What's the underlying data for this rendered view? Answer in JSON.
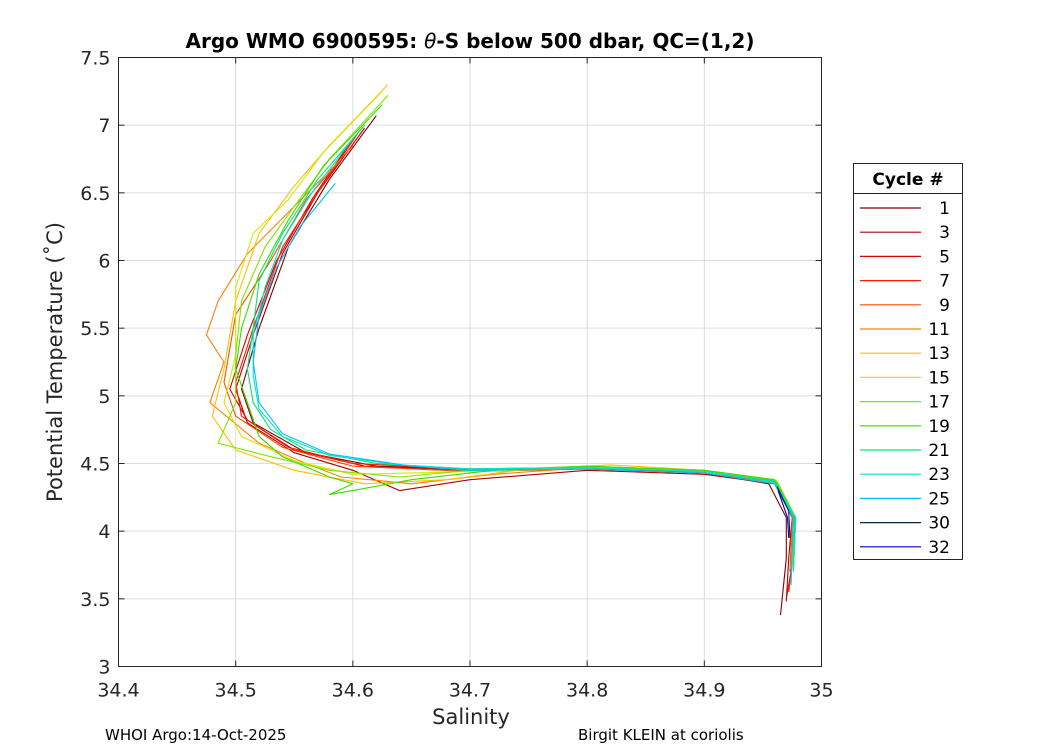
{
  "chart_data": {
    "type": "line",
    "title_prefix": "Argo WMO 6900595: ",
    "title_symbol": "θ",
    "title_suffix": "-S below 500 dbar,  QC=(1,2)",
    "xlabel": "Salinity",
    "ylabel": "Potential Temperature (˚C)",
    "xlim": [
      34.4,
      35.0
    ],
    "ylim": [
      3.0,
      7.5
    ],
    "xticks": [
      "34.4",
      "34.5",
      "34.6",
      "34.7",
      "34.8",
      "34.9",
      "35"
    ],
    "yticks": [
      "3",
      "3.5",
      "4",
      "4.5",
      "5",
      "5.5",
      "6",
      "6.5",
      "7",
      "7.5"
    ],
    "grid": true,
    "legend": {
      "title": "Cycle #",
      "placement": "right-outside"
    },
    "series": [
      {
        "name": "1",
        "color": "#800000",
        "points": [
          [
            34.62,
            7.07
          ],
          [
            34.58,
            6.6
          ],
          [
            34.545,
            6.1
          ],
          [
            34.52,
            5.5
          ],
          [
            34.505,
            5.05
          ],
          [
            34.515,
            4.8
          ],
          [
            34.56,
            4.58
          ],
          [
            34.62,
            4.48
          ],
          [
            34.7,
            4.46
          ],
          [
            34.8,
            4.46
          ],
          [
            34.9,
            4.43
          ],
          [
            34.955,
            4.35
          ],
          [
            34.97,
            4.1
          ],
          [
            34.97,
            3.8
          ],
          [
            34.965,
            3.38
          ]
        ]
      },
      {
        "name": "3",
        "color": "#b30000",
        "points": [
          [
            34.61,
            6.98
          ],
          [
            34.57,
            6.5
          ],
          [
            34.54,
            6.05
          ],
          [
            34.515,
            5.45
          ],
          [
            34.5,
            5.05
          ],
          [
            34.51,
            4.8
          ],
          [
            34.55,
            4.58
          ],
          [
            34.6,
            4.45
          ],
          [
            34.64,
            4.3
          ],
          [
            34.7,
            4.38
          ],
          [
            34.8,
            4.45
          ],
          [
            34.9,
            4.42
          ],
          [
            34.96,
            4.35
          ],
          [
            34.975,
            4.1
          ],
          [
            34.972,
            3.8
          ],
          [
            34.97,
            3.48
          ]
        ]
      },
      {
        "name": "5",
        "color": "#d90000",
        "points": [
          [
            34.6,
            6.9
          ],
          [
            34.565,
            6.45
          ],
          [
            34.535,
            6.0
          ],
          [
            34.51,
            5.45
          ],
          [
            34.495,
            5.05
          ],
          [
            34.51,
            4.82
          ],
          [
            34.55,
            4.6
          ],
          [
            34.61,
            4.48
          ],
          [
            34.7,
            4.45
          ],
          [
            34.8,
            4.46
          ],
          [
            34.9,
            4.44
          ],
          [
            34.96,
            4.38
          ],
          [
            34.978,
            4.1
          ],
          [
            34.975,
            3.75
          ],
          [
            34.97,
            3.5
          ]
        ]
      },
      {
        "name": "7",
        "color": "#ff1a00",
        "points": [
          [
            34.605,
            6.95
          ],
          [
            34.57,
            6.5
          ],
          [
            34.54,
            6.1
          ],
          [
            34.515,
            5.5
          ],
          [
            34.5,
            5.1
          ],
          [
            34.505,
            4.85
          ],
          [
            34.545,
            4.62
          ],
          [
            34.6,
            4.5
          ],
          [
            34.7,
            4.46
          ],
          [
            34.8,
            4.47
          ],
          [
            34.9,
            4.44
          ],
          [
            34.958,
            4.38
          ],
          [
            34.976,
            4.12
          ],
          [
            34.975,
            3.78
          ],
          [
            34.972,
            3.55
          ]
        ]
      },
      {
        "name": "9",
        "color": "#ff4d00",
        "points": [
          [
            34.6,
            6.85
          ],
          [
            34.56,
            6.45
          ],
          [
            34.53,
            6.0
          ],
          [
            34.5,
            5.6
          ],
          [
            34.49,
            5.1
          ],
          [
            34.5,
            4.85
          ],
          [
            34.54,
            4.62
          ],
          [
            34.6,
            4.48
          ],
          [
            34.7,
            4.44
          ],
          [
            34.8,
            4.46
          ],
          [
            34.9,
            4.43
          ],
          [
            34.96,
            4.36
          ],
          [
            34.975,
            4.1
          ],
          [
            34.973,
            3.7
          ]
        ]
      },
      {
        "name": "11",
        "color": "#ff8000",
        "points": [
          [
            34.59,
            6.75
          ],
          [
            34.55,
            6.4
          ],
          [
            34.51,
            6.05
          ],
          [
            34.485,
            5.7
          ],
          [
            34.475,
            5.45
          ],
          [
            34.49,
            5.25
          ],
          [
            34.478,
            4.95
          ],
          [
            34.52,
            4.65
          ],
          [
            34.56,
            4.5
          ],
          [
            34.59,
            4.4
          ],
          [
            34.65,
            4.35
          ],
          [
            34.72,
            4.42
          ],
          [
            34.8,
            4.47
          ],
          [
            34.9,
            4.44
          ],
          [
            34.96,
            4.37
          ],
          [
            34.976,
            4.1
          ],
          [
            34.974,
            3.75
          ]
        ]
      },
      {
        "name": "13",
        "color": "#ffbf00",
        "points": [
          [
            34.63,
            7.3
          ],
          [
            34.58,
            6.85
          ],
          [
            34.55,
            6.55
          ],
          [
            34.52,
            6.2
          ],
          [
            34.5,
            5.7
          ],
          [
            34.49,
            5.2
          ],
          [
            34.48,
            4.85
          ],
          [
            34.5,
            4.6
          ],
          [
            34.55,
            4.45
          ],
          [
            34.61,
            4.35
          ],
          [
            34.68,
            4.38
          ],
          [
            34.75,
            4.46
          ],
          [
            34.82,
            4.49
          ],
          [
            34.9,
            4.45
          ],
          [
            34.96,
            4.38
          ],
          [
            34.977,
            4.1
          ],
          [
            34.975,
            3.72
          ]
        ]
      },
      {
        "name": "15",
        "color": "#d9e600",
        "points": [
          [
            34.625,
            7.25
          ],
          [
            34.575,
            6.8
          ],
          [
            34.545,
            6.45
          ],
          [
            34.515,
            6.2
          ],
          [
            34.5,
            5.8
          ],
          [
            34.5,
            5.3
          ],
          [
            34.49,
            4.95
          ],
          [
            34.505,
            4.7
          ],
          [
            34.55,
            4.52
          ],
          [
            34.6,
            4.42
          ],
          [
            34.7,
            4.44
          ],
          [
            34.8,
            4.47
          ],
          [
            34.9,
            4.45
          ],
          [
            34.96,
            4.38
          ],
          [
            34.977,
            4.1
          ],
          [
            34.976,
            3.75
          ]
        ]
      },
      {
        "name": "17",
        "color": "#80e600",
        "points": [
          [
            34.63,
            7.22
          ],
          [
            34.58,
            6.75
          ],
          [
            34.55,
            6.4
          ],
          [
            34.525,
            6.1
          ],
          [
            34.505,
            5.7
          ],
          [
            34.5,
            5.3
          ],
          [
            34.5,
            4.95
          ],
          [
            34.485,
            4.65
          ],
          [
            34.53,
            4.55
          ],
          [
            34.58,
            4.45
          ],
          [
            34.64,
            4.4
          ],
          [
            34.7,
            4.45
          ],
          [
            34.8,
            4.48
          ],
          [
            34.9,
            4.45
          ],
          [
            34.962,
            4.37
          ],
          [
            34.978,
            4.1
          ],
          [
            34.976,
            3.7
          ]
        ]
      },
      {
        "name": "19",
        "color": "#40d900",
        "points": [
          [
            34.625,
            7.15
          ],
          [
            34.575,
            6.7
          ],
          [
            34.545,
            6.3
          ],
          [
            34.52,
            5.9
          ],
          [
            34.505,
            5.5
          ],
          [
            34.5,
            5.2
          ],
          [
            34.51,
            4.95
          ],
          [
            34.52,
            4.7
          ],
          [
            34.54,
            4.55
          ],
          [
            34.58,
            4.4
          ],
          [
            34.6,
            4.35
          ],
          [
            34.58,
            4.27
          ],
          [
            34.6,
            4.3
          ],
          [
            34.65,
            4.38
          ],
          [
            34.72,
            4.45
          ],
          [
            34.8,
            4.48
          ],
          [
            34.9,
            4.45
          ],
          [
            34.96,
            4.38
          ],
          [
            34.978,
            4.1
          ],
          [
            34.976,
            3.72
          ]
        ]
      },
      {
        "name": "21",
        "color": "#00e673",
        "points": [
          [
            34.61,
            7.0
          ],
          [
            34.57,
            6.6
          ],
          [
            34.54,
            6.2
          ],
          [
            34.52,
            5.85
          ],
          [
            34.515,
            5.5
          ],
          [
            34.51,
            5.2
          ],
          [
            34.515,
            4.95
          ],
          [
            34.53,
            4.75
          ],
          [
            34.56,
            4.6
          ],
          [
            34.62,
            4.5
          ],
          [
            34.7,
            4.46
          ],
          [
            34.8,
            4.47
          ],
          [
            34.9,
            4.44
          ],
          [
            34.96,
            4.37
          ],
          [
            34.977,
            4.1
          ],
          [
            34.976,
            3.75
          ]
        ]
      },
      {
        "name": "23",
        "color": "#00e6cc",
        "points": [
          [
            34.6,
            6.9
          ],
          [
            34.565,
            6.5
          ],
          [
            34.54,
            6.15
          ],
          [
            34.525,
            5.8
          ],
          [
            34.515,
            5.45
          ],
          [
            34.515,
            5.15
          ],
          [
            34.52,
            4.9
          ],
          [
            34.54,
            4.7
          ],
          [
            34.58,
            4.56
          ],
          [
            34.64,
            4.49
          ],
          [
            34.7,
            4.46
          ],
          [
            34.8,
            4.47
          ],
          [
            34.9,
            4.44
          ],
          [
            34.96,
            4.36
          ],
          [
            34.978,
            4.1
          ],
          [
            34.976,
            3.7
          ]
        ]
      },
      {
        "name": "25",
        "color": "#00bfff",
        "points": [
          [
            34.585,
            6.57
          ],
          [
            34.555,
            6.25
          ],
          [
            34.535,
            5.95
          ],
          [
            34.52,
            5.6
          ],
          [
            34.515,
            5.25
          ],
          [
            34.52,
            4.95
          ],
          [
            34.54,
            4.72
          ],
          [
            34.58,
            4.57
          ],
          [
            34.65,
            4.48
          ],
          [
            34.7,
            4.45
          ],
          [
            34.8,
            4.46
          ],
          [
            34.9,
            4.43
          ],
          [
            34.96,
            4.35
          ],
          [
            34.976,
            4.1
          ],
          [
            34.974,
            3.6
          ]
        ]
      },
      {
        "name": "30",
        "color": "#00264d",
        "points": [
          [
            34.962,
            4.33
          ],
          [
            34.972,
            4.15
          ],
          [
            34.973,
            3.95
          ]
        ]
      },
      {
        "name": "32",
        "color": "#0000cc",
        "points": [
          [
            34.963,
            4.3
          ],
          [
            34.971,
            4.1
          ],
          [
            34.972,
            3.95
          ]
        ]
      }
    ]
  },
  "footer": {
    "left": "WHOI Argo:14-Oct-2025",
    "right": "Birgit KLEIN at coriolis"
  }
}
